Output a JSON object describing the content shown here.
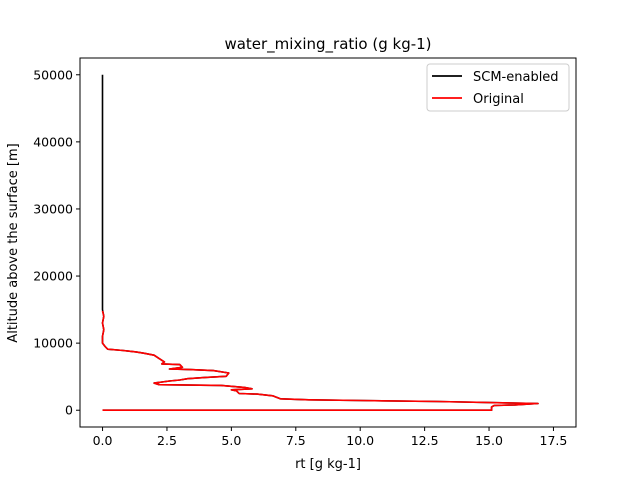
{
  "chart_data": {
    "type": "line",
    "title": "water_mixing_ratio (g kg-1)",
    "xlabel": "rt [g kg-1]",
    "ylabel": "Altitude above the surface [m]",
    "xlim": [
      -0.875,
      18.375
    ],
    "ylim": [
      -2500,
      52500
    ],
    "xticks": [
      0.0,
      2.5,
      5.0,
      7.5,
      10.0,
      12.5,
      15.0,
      17.5
    ],
    "xtick_labels": [
      "0.0",
      "2.5",
      "5.0",
      "7.5",
      "10.0",
      "12.5",
      "15.0",
      "17.5"
    ],
    "yticks": [
      0,
      10000,
      20000,
      30000,
      40000,
      50000
    ],
    "ytick_labels": [
      "0",
      "10000",
      "20000",
      "30000",
      "40000",
      "50000"
    ],
    "grid": false,
    "legend_position": "top-right",
    "series": [
      {
        "name": "SCM-enabled",
        "color": "#000000",
        "points": [
          [
            0.0,
            50000
          ],
          [
            0.0,
            40000
          ],
          [
            0.0,
            30000
          ],
          [
            0.0,
            20000
          ],
          [
            0.0,
            15000
          ],
          [
            0.05,
            14000
          ],
          [
            0.0,
            13000
          ],
          [
            0.05,
            12000
          ],
          [
            0.0,
            11000
          ],
          [
            0.0,
            10000
          ],
          [
            0.1,
            9500
          ],
          [
            0.2,
            9100
          ],
          [
            0.8,
            8900
          ],
          [
            1.3,
            8700
          ],
          [
            1.6,
            8500
          ],
          [
            2.0,
            8200
          ],
          [
            2.2,
            7700
          ],
          [
            2.4,
            7200
          ],
          [
            2.3,
            6900
          ],
          [
            3.0,
            6800
          ],
          [
            3.1,
            6400
          ],
          [
            2.6,
            6150
          ],
          [
            3.4,
            6050
          ],
          [
            4.3,
            5900
          ],
          [
            4.9,
            5550
          ],
          [
            4.8,
            5050
          ],
          [
            4.0,
            4900
          ],
          [
            3.3,
            4700
          ],
          [
            3.0,
            4500
          ],
          [
            2.6,
            4350
          ],
          [
            2.0,
            4050
          ],
          [
            2.2,
            3800
          ],
          [
            4.6,
            3700
          ],
          [
            5.5,
            3400
          ],
          [
            5.8,
            3200
          ],
          [
            5.0,
            3050
          ],
          [
            5.2,
            2900
          ],
          [
            5.3,
            2500
          ],
          [
            6.0,
            2400
          ],
          [
            6.6,
            2150
          ],
          [
            6.9,
            1700
          ],
          [
            8.0,
            1550
          ],
          [
            10.0,
            1450
          ],
          [
            13.0,
            1300
          ],
          [
            16.9,
            1000
          ],
          [
            16.0,
            800
          ],
          [
            15.2,
            700
          ],
          [
            15.1,
            500
          ],
          [
            15.1,
            200
          ],
          [
            15.1,
            0
          ],
          [
            7.0,
            0
          ],
          [
            0.0,
            0
          ]
        ]
      },
      {
        "name": "Original",
        "color": "#ff0000",
        "points": [
          [
            0.0,
            14800
          ],
          [
            0.05,
            14000
          ],
          [
            0.0,
            13000
          ],
          [
            0.05,
            12000
          ],
          [
            0.0,
            11000
          ],
          [
            0.0,
            10000
          ],
          [
            0.1,
            9500
          ],
          [
            0.2,
            9100
          ],
          [
            0.8,
            8900
          ],
          [
            1.3,
            8700
          ],
          [
            1.6,
            8500
          ],
          [
            2.0,
            8200
          ],
          [
            2.2,
            7700
          ],
          [
            2.4,
            7200
          ],
          [
            2.3,
            6900
          ],
          [
            3.0,
            6800
          ],
          [
            3.1,
            6400
          ],
          [
            2.6,
            6150
          ],
          [
            3.4,
            6050
          ],
          [
            4.3,
            5900
          ],
          [
            4.9,
            5550
          ],
          [
            4.8,
            5050
          ],
          [
            4.0,
            4900
          ],
          [
            3.3,
            4700
          ],
          [
            3.0,
            4500
          ],
          [
            2.6,
            4350
          ],
          [
            2.0,
            4050
          ],
          [
            2.2,
            3800
          ],
          [
            4.6,
            3700
          ],
          [
            5.5,
            3400
          ],
          [
            5.8,
            3200
          ],
          [
            5.0,
            3050
          ],
          [
            5.2,
            2900
          ],
          [
            5.3,
            2500
          ],
          [
            6.0,
            2400
          ],
          [
            6.6,
            2150
          ],
          [
            6.9,
            1700
          ],
          [
            8.0,
            1550
          ],
          [
            10.0,
            1450
          ],
          [
            13.0,
            1300
          ],
          [
            16.9,
            1000
          ],
          [
            16.0,
            800
          ],
          [
            15.2,
            700
          ],
          [
            15.1,
            500
          ],
          [
            15.1,
            200
          ],
          [
            15.1,
            0
          ],
          [
            7.0,
            0
          ],
          [
            0.0,
            0
          ]
        ]
      }
    ]
  }
}
